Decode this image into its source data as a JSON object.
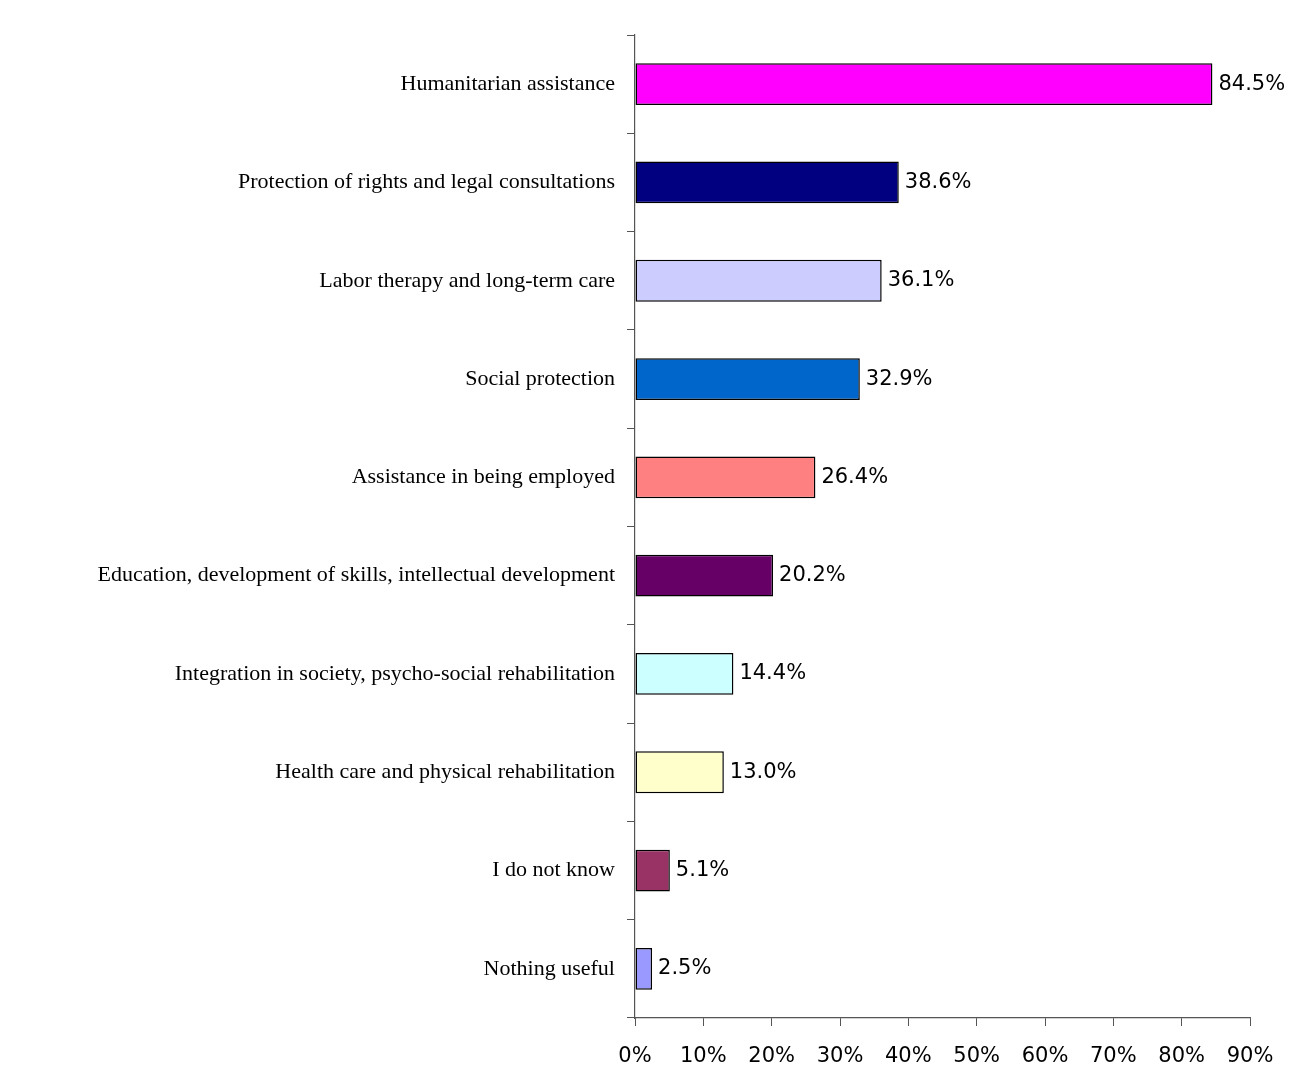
{
  "chart_data": {
    "type": "bar",
    "orientation": "horizontal",
    "categories": [
      "Humanitarian assistance",
      "Protection of rights and legal consultations",
      "Labor therapy and long-term care",
      "Social protection",
      "Assistance in being employed",
      "Education, development of skills, intellectual development",
      "Integration in society, psycho-social rehabilitation",
      "Health care and physical rehabilitation",
      "I do not know",
      "Nothing useful"
    ],
    "values": [
      84.5,
      38.6,
      36.1,
      32.9,
      26.4,
      20.2,
      14.4,
      13.0,
      5.1,
      2.5
    ],
    "colors": [
      "#ff00ff",
      "#000080",
      "#ccccff",
      "#0066cc",
      "#ff8080",
      "#660066",
      "#ccffff",
      "#ffffcc",
      "#993366",
      "#9999ff"
    ],
    "value_labels": [
      "84.5%",
      "38.6%",
      "36.1%",
      "32.9%",
      "26.4%",
      "20.2%",
      "14.4%",
      "13.0%",
      "5.1%",
      "2.5%"
    ],
    "xlim": [
      0,
      90
    ],
    "xticks": [
      {
        "value": 0,
        "label": "0%"
      },
      {
        "value": 10,
        "label": "10%"
      },
      {
        "value": 20,
        "label": "20%"
      },
      {
        "value": 30,
        "label": "30%"
      },
      {
        "value": 40,
        "label": "40%"
      },
      {
        "value": 50,
        "label": "50%"
      },
      {
        "value": 60,
        "label": "60%"
      },
      {
        "value": 70,
        "label": "70%"
      },
      {
        "value": 80,
        "label": "80%"
      },
      {
        "value": 90,
        "label": "90%"
      }
    ],
    "grid": false,
    "legend": false
  }
}
